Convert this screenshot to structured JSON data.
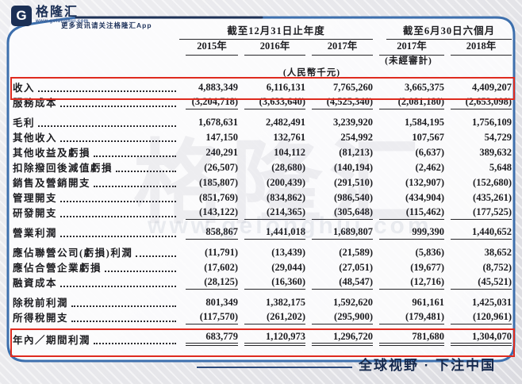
{
  "brand": {
    "logo_letter": "G",
    "logo_text": "格隆汇",
    "logo_url": "www.gelonghui.com",
    "tagline": "更多资讯请关注格隆汇App"
  },
  "watermark": {
    "big": "格隆汇",
    "url": "www.gelonghui.com"
  },
  "footer": {
    "slogan": "全球视野 · 下注中国"
  },
  "colors": {
    "frame_blue": "#3d6fad",
    "highlight_red": "#df2b1f",
    "brand_navy": "#1b2f55"
  },
  "table": {
    "col_groups": [
      {
        "label": "截至12月31日止年度",
        "span": 3
      },
      {
        "label": "截至6月30日六個月",
        "span": 2
      }
    ],
    "columns": [
      "2015年",
      "2016年",
      "2017年",
      "2017年",
      "2018年"
    ],
    "unaudited_note": "(未經審計)",
    "currency_note": "(人民幣千元)",
    "rows": [
      {
        "label": "收入",
        "values": [
          "4,883,349",
          "6,116,131",
          "7,765,260",
          "3,665,375",
          "4,409,207"
        ],
        "highlight": true
      },
      {
        "label": "服務成本",
        "values": [
          "(3,204,718)",
          "(3,633,640)",
          "(4,525,340)",
          "(2,081,180)",
          "(2,653,098)"
        ],
        "rule": "single"
      },
      {
        "label": "毛利",
        "values": [
          "1,678,631",
          "2,482,491",
          "3,239,920",
          "1,584,195",
          "1,756,109"
        ],
        "gap": true
      },
      {
        "label": "其他收入",
        "values": [
          "147,150",
          "132,761",
          "254,992",
          "107,567",
          "54,729"
        ]
      },
      {
        "label": "其他收益及虧損",
        "values": [
          "240,291",
          "104,112",
          "(81,213)",
          "(6,637)",
          "389,632"
        ]
      },
      {
        "label": "扣除撥回後減值虧損",
        "values": [
          "(26,507)",
          "(28,680)",
          "(140,194)",
          "(2,462)",
          "5,648"
        ]
      },
      {
        "label": "銷售及營銷開支",
        "values": [
          "(185,807)",
          "(200,439)",
          "(291,510)",
          "(132,907)",
          "(152,680)"
        ]
      },
      {
        "label": "管理開支",
        "values": [
          "(851,769)",
          "(834,862)",
          "(986,540)",
          "(434,904)",
          "(435,261)"
        ]
      },
      {
        "label": "研發開支",
        "values": [
          "(143,122)",
          "(214,365)",
          "(305,648)",
          "(115,462)",
          "(177,525)"
        ],
        "rule": "single"
      },
      {
        "label": "營業利潤",
        "values": [
          "858,867",
          "1,441,018",
          "1,689,807",
          "999,390",
          "1,440,652"
        ],
        "rule": "single",
        "gap": true
      },
      {
        "label": "應佔聯營公司(虧損)利潤",
        "values": [
          "(11,791)",
          "(13,439)",
          "(21,589)",
          "(5,836)",
          "38,652"
        ],
        "gap": true
      },
      {
        "label": "應佔合營企業虧損",
        "values": [
          "(17,602)",
          "(29,044)",
          "(27,051)",
          "(19,677)",
          "(8,752)"
        ]
      },
      {
        "label": "融資成本",
        "values": [
          "(28,125)",
          "(16,360)",
          "(48,547)",
          "(12,716)",
          "(45,521)"
        ],
        "rule": "single"
      },
      {
        "label": "除稅前利潤",
        "values": [
          "801,349",
          "1,382,175",
          "1,592,620",
          "961,161",
          "1,425,031"
        ],
        "gap": true
      },
      {
        "label": "所得稅開支",
        "values": [
          "(117,570)",
          "(261,202)",
          "(295,900)",
          "(179,481)",
          "(120,961)"
        ],
        "rule": "single"
      },
      {
        "label": "年內／期間利潤",
        "values": [
          "683,779",
          "1,120,973",
          "1,296,720",
          "781,680",
          "1,304,070"
        ],
        "rule": "double",
        "gap": true,
        "highlight": true
      }
    ]
  }
}
